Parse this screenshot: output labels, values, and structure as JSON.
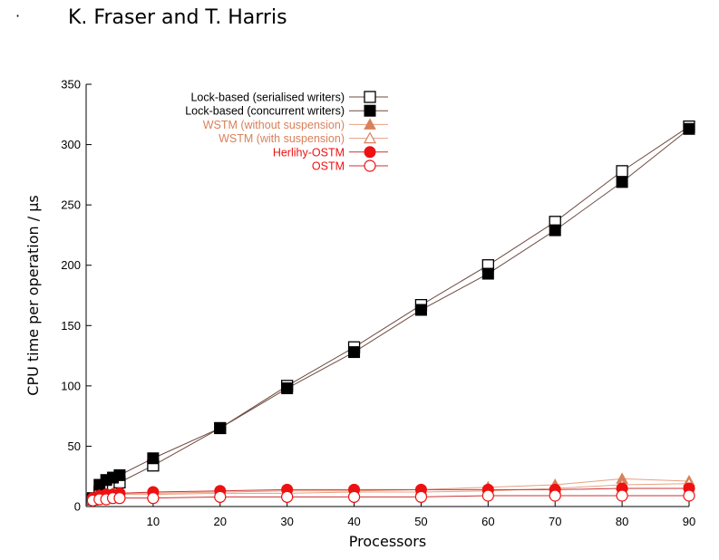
{
  "header": {
    "bullet": "·",
    "title": "K. Fraser and T. Harris"
  },
  "chart_data": {
    "type": "line",
    "title": "",
    "xlabel": "Processors",
    "ylabel": "CPU time per operation / µs",
    "xlim": [
      0,
      90
    ],
    "ylim": [
      0,
      350
    ],
    "xticks": [
      10,
      20,
      30,
      40,
      50,
      60,
      70,
      80,
      90
    ],
    "yticks": [
      0,
      50,
      100,
      150,
      200,
      250,
      300,
      350
    ],
    "grid": false,
    "legend_position": "top-left",
    "series": [
      {
        "name": "Lock-based (serialised writers)",
        "color": "#000000",
        "line_color": "#6e4a40",
        "marker": "square-open",
        "x": [
          1,
          2,
          3,
          4,
          5,
          10,
          20,
          30,
          40,
          50,
          60,
          70,
          80,
          90
        ],
        "y": [
          6,
          12,
          14,
          17,
          20,
          34,
          65,
          100,
          132,
          167,
          200,
          236,
          278,
          315
        ]
      },
      {
        "name": "Lock-based (concurrent writers)",
        "color": "#000000",
        "line_color": "#6e4a40",
        "marker": "square-filled",
        "x": [
          1,
          2,
          3,
          4,
          5,
          10,
          20,
          30,
          40,
          50,
          60,
          70,
          80,
          90
        ],
        "y": [
          7,
          18,
          22,
          24,
          26,
          40,
          65,
          98,
          128,
          163,
          193,
          229,
          269,
          313
        ]
      },
      {
        "name": "WSTM (without suspension)",
        "color": "#d9805a",
        "line_color": "#e8a080",
        "marker": "triangle-filled",
        "x": [
          1,
          2,
          3,
          4,
          5,
          10,
          20,
          30,
          40,
          50,
          60,
          70,
          80,
          90
        ],
        "y": [
          7,
          9,
          10,
          11,
          11,
          11,
          12,
          13,
          13,
          14,
          16,
          18,
          23,
          21
        ]
      },
      {
        "name": "WSTM (with suspension)",
        "color": "#d9805a",
        "line_color": "#e8a080",
        "marker": "triangle-open",
        "x": [
          1,
          2,
          3,
          4,
          5,
          10,
          20,
          30,
          40,
          50,
          60,
          70,
          80,
          90
        ],
        "y": [
          6,
          8,
          9,
          9,
          10,
          10,
          11,
          11,
          12,
          12,
          13,
          15,
          18,
          19
        ]
      },
      {
        "name": "Herlihy-OSTM",
        "color": "#ee1111",
        "line_color": "#cc3333",
        "marker": "circle-filled",
        "x": [
          1,
          2,
          3,
          4,
          5,
          10,
          20,
          30,
          40,
          50,
          60,
          70,
          80,
          90
        ],
        "y": [
          7,
          9,
          10,
          10,
          11,
          12,
          13,
          14,
          14,
          14,
          14,
          14,
          15,
          15
        ]
      },
      {
        "name": "OSTM",
        "color": "#ee1111",
        "line_color": "#cc3333",
        "marker": "circle-open",
        "x": [
          1,
          2,
          3,
          4,
          5,
          10,
          20,
          30,
          40,
          50,
          60,
          70,
          80,
          90
        ],
        "y": [
          5,
          6,
          6,
          7,
          7,
          7,
          8,
          8,
          8,
          8,
          9,
          9,
          9,
          9
        ]
      }
    ]
  }
}
